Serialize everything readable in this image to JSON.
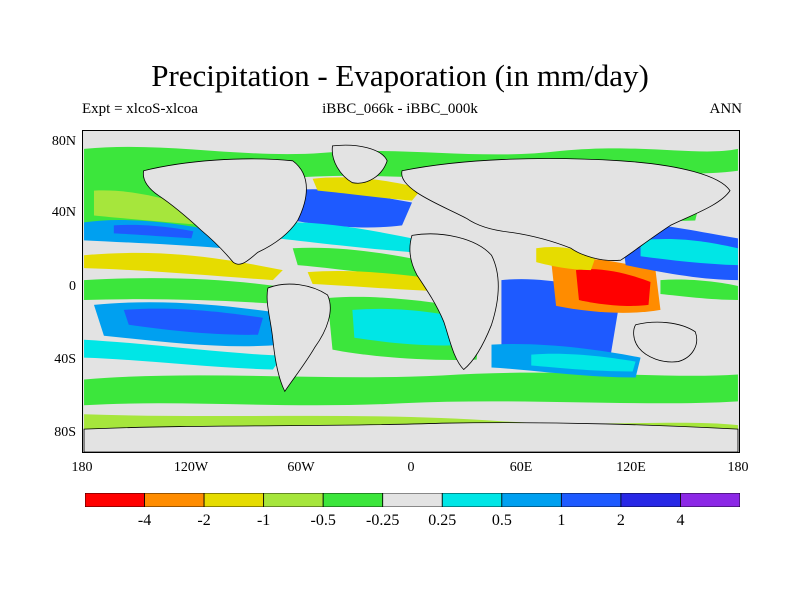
{
  "title": "Precipitation - Evaporation (in mm/day)",
  "subtitle_left": "Expt = xlcoS-xlcoa",
  "subtitle_center": "iBBC_066k - iBBC_000k",
  "subtitle_right": "ANN",
  "lat_labels": [
    "80N",
    "40N",
    "0",
    "40S",
    "80S"
  ],
  "lon_labels": [
    "180",
    "120W",
    "60W",
    "0",
    "60E",
    "120E",
    "180"
  ],
  "colorbar": {
    "colors": [
      "#ff0000",
      "#ff8c00",
      "#e6dc00",
      "#a6e63c",
      "#3ce63c",
      "#e3e3e3",
      "#00e6e6",
      "#00a0f0",
      "#1e5aff",
      "#2828e6",
      "#8c28e6"
    ],
    "labels": [
      "-4",
      "-2",
      "-1",
      "-0.5",
      "-0.25",
      "0.25",
      "0.5",
      "1",
      "2",
      "4"
    ]
  },
  "colors": {
    "land": "#e3e3e3",
    "coast": "#000000",
    "dry_strong": "#ff0000",
    "dry": "#ff8c00",
    "yellow": "#e6dc00",
    "lightgreen": "#a6e63c",
    "green": "#3ce63c",
    "cyan": "#00e6e6",
    "skyblue": "#00a0f0",
    "blue": "#1e5aff",
    "darkblue": "#2828e6"
  }
}
